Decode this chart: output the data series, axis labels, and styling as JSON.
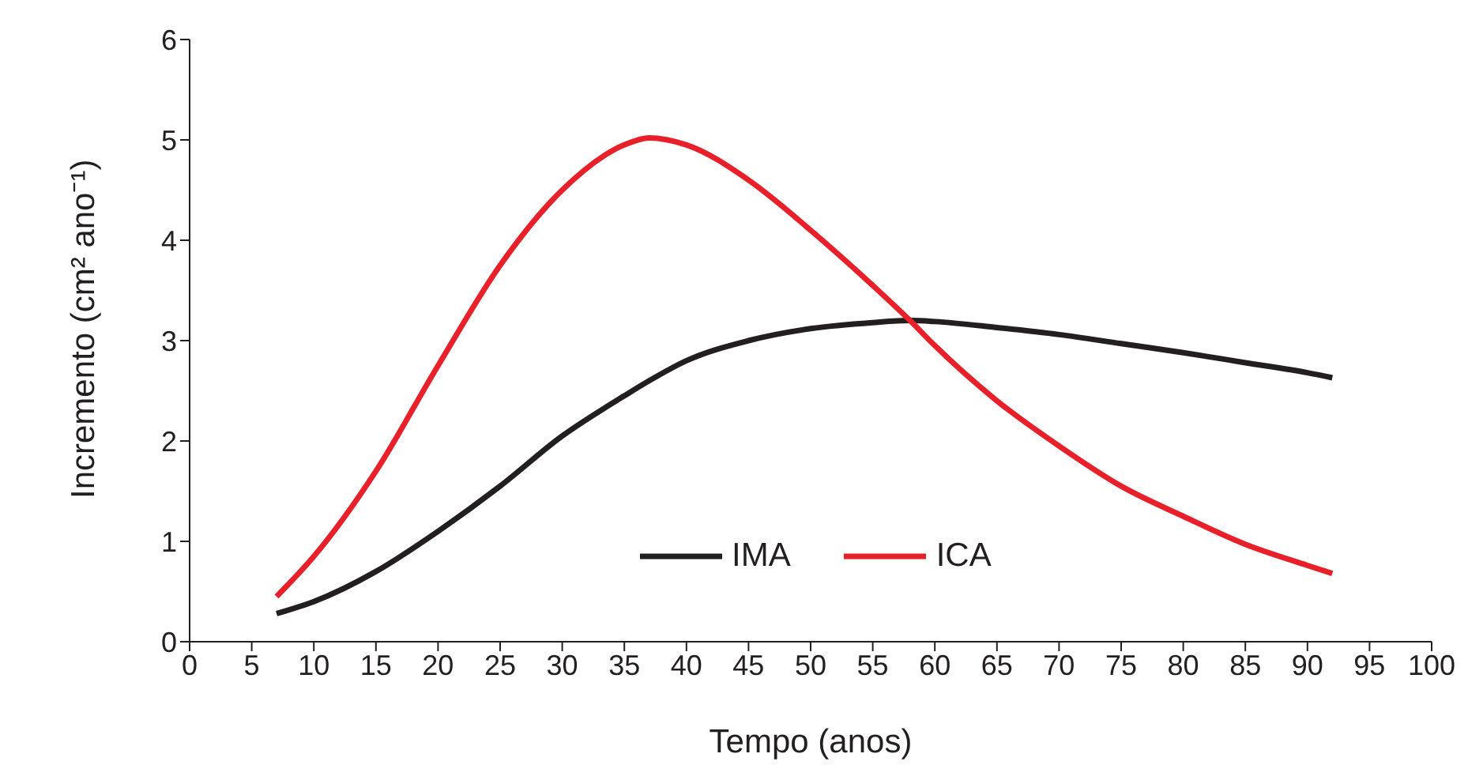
{
  "chart_data": {
    "type": "line",
    "xlabel": "Tempo (anos)",
    "ylabel": "Incremento (cm² ano⁻¹)",
    "xlim": [
      0,
      100
    ],
    "xticks": [
      0,
      5,
      10,
      15,
      20,
      25,
      30,
      35,
      40,
      45,
      50,
      55,
      60,
      65,
      70,
      75,
      80,
      85,
      90,
      95,
      100
    ],
    "ylim": [
      0,
      6
    ],
    "yticks": [
      0,
      1,
      2,
      3,
      4,
      5,
      6
    ],
    "grid": false,
    "legend": "bottom",
    "marker": "none",
    "line_style": "solid",
    "x": [
      7,
      10,
      15,
      20,
      25,
      30,
      35,
      37,
      40,
      45,
      50,
      55,
      58,
      60,
      65,
      70,
      75,
      80,
      85,
      90,
      92
    ],
    "series": [
      {
        "name": "IMA",
        "color": "#231f20",
        "values": [
          0.28,
          0.4,
          0.7,
          1.1,
          1.55,
          2.05,
          2.45,
          2.6,
          2.8,
          3.0,
          3.12,
          3.18,
          3.2,
          3.19,
          3.13,
          3.06,
          2.97,
          2.88,
          2.78,
          2.68,
          2.63
        ]
      },
      {
        "name": "ICA",
        "color": "#e8202a",
        "values": [
          0.45,
          0.85,
          1.7,
          2.75,
          3.75,
          4.5,
          4.95,
          5.02,
          4.95,
          4.6,
          4.1,
          3.55,
          3.2,
          2.95,
          2.4,
          1.95,
          1.55,
          1.25,
          0.97,
          0.76,
          0.68
        ]
      }
    ]
  }
}
